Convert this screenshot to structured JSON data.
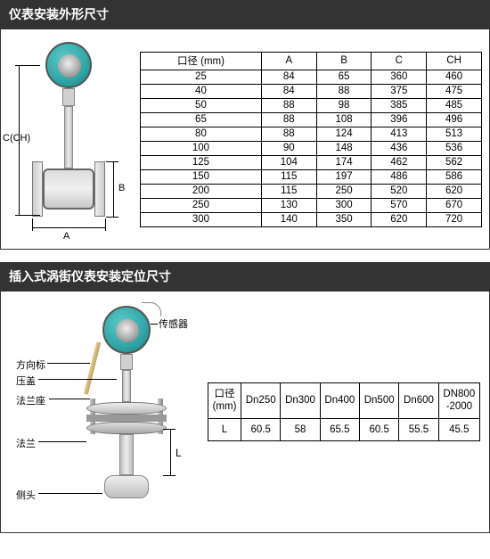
{
  "section1": {
    "title": "仪表安装外形尺寸",
    "dim_labels": {
      "C": "C(CH)",
      "A": "A",
      "B": "B"
    },
    "table": {
      "headers": [
        "口径 (mm)",
        "A",
        "B",
        "C",
        "CH"
      ],
      "rows": [
        [
          "25",
          "84",
          "65",
          "360",
          "460"
        ],
        [
          "40",
          "84",
          "88",
          "375",
          "475"
        ],
        [
          "50",
          "88",
          "98",
          "385",
          "485"
        ],
        [
          "65",
          "88",
          "108",
          "396",
          "496"
        ],
        [
          "80",
          "88",
          "124",
          "413",
          "513"
        ],
        [
          "100",
          "90",
          "148",
          "436",
          "536"
        ],
        [
          "125",
          "104",
          "174",
          "462",
          "562"
        ],
        [
          "150",
          "115",
          "197",
          "486",
          "586"
        ],
        [
          "200",
          "115",
          "250",
          "520",
          "620"
        ],
        [
          "250",
          "130",
          "300",
          "570",
          "670"
        ],
        [
          "300",
          "140",
          "350",
          "620",
          "720"
        ]
      ]
    },
    "colors": {
      "border": "#000000"
    }
  },
  "section2": {
    "title": "插入式涡街仪表安装定位尺寸",
    "callouts": {
      "sensor": "传感器",
      "direction": "方向标",
      "cap": "压盖",
      "flange_seat": "法兰座",
      "flange": "法兰",
      "side_head": "侧头"
    },
    "dim_L": "L",
    "table": {
      "header_row1": [
        "口径",
        "Dn250",
        "Dn300",
        "Dn400",
        "Dn500",
        "Dn600",
        "DN800"
      ],
      "header_row1_line2": [
        "(mm)",
        "",
        "",
        "",
        "",
        "",
        "-2000"
      ],
      "rows": [
        [
          "L",
          "60.5",
          "58",
          "65.5",
          "60.5",
          "55.5",
          "45.5"
        ]
      ]
    }
  },
  "style": {
    "header_bg": "#333333",
    "header_fg": "#ffffff",
    "sensor_color": "#2fa6a6",
    "border_color": "#333333"
  }
}
